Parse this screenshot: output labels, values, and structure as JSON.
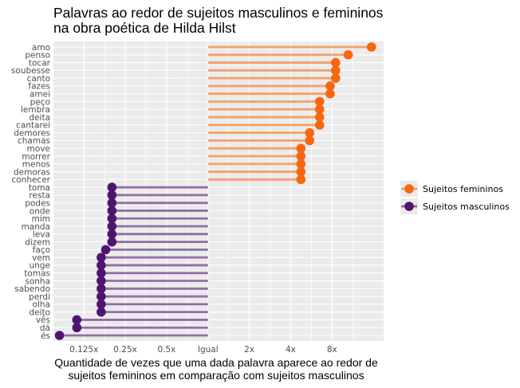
{
  "chart_data": {
    "type": "lollipop",
    "title": [
      "Palavras ao redor de sujeitos masculinos e femininos",
      "na obra poética de Hilda Hilst"
    ],
    "xlabel": [
      "Quantidade de vezes que uma dada palavra aparece ao redor de",
      "sujeitos femininos em comparação com sujeitos masculinos"
    ],
    "ylabel": "",
    "x_scale": "log2",
    "x_baseline": 1,
    "xlim": [
      0.075,
      19
    ],
    "x_ticks": [
      {
        "value": 0.125,
        "label": "0.125x"
      },
      {
        "value": 0.25,
        "label": "0.25x"
      },
      {
        "value": 0.5,
        "label": "0.5x"
      },
      {
        "value": 1,
        "label": "Igual"
      },
      {
        "value": 2,
        "label": "2x"
      },
      {
        "value": 4,
        "label": "4x"
      },
      {
        "value": 8,
        "label": "8x"
      }
    ],
    "grid": true,
    "legend_position": "right",
    "colors": {
      "Sujeitos femininos": "#f8660d",
      "Sujeitos masculinos": "#4f1470",
      "panel": "#ebebeb",
      "grid": "#ffffff"
    },
    "series": [
      {
        "name": "Sujeitos femininos",
        "points": [
          {
            "word": "amo",
            "value": 15.5
          },
          {
            "word": "penso",
            "value": 10.5
          },
          {
            "word": "tocar",
            "value": 8.5
          },
          {
            "word": "soubesse",
            "value": 8.5
          },
          {
            "word": "canto",
            "value": 8.5
          },
          {
            "word": "fazes",
            "value": 7.75
          },
          {
            "word": "amei",
            "value": 7.75
          },
          {
            "word": "peço",
            "value": 6.5
          },
          {
            "word": "lembra",
            "value": 6.5
          },
          {
            "word": "deita",
            "value": 6.5
          },
          {
            "word": "cantarei",
            "value": 6.5
          },
          {
            "word": "demores",
            "value": 5.5
          },
          {
            "word": "chamas",
            "value": 5.5
          },
          {
            "word": "move",
            "value": 4.75
          },
          {
            "word": "morrer",
            "value": 4.75
          },
          {
            "word": "menos",
            "value": 4.75
          },
          {
            "word": "demoras",
            "value": 4.75
          },
          {
            "word": "conhecer",
            "value": 4.75
          }
        ]
      },
      {
        "name": "Sujeitos masculinos",
        "points": [
          {
            "word": "toma",
            "value": 0.2
          },
          {
            "word": "resta",
            "value": 0.2
          },
          {
            "word": "podes",
            "value": 0.2
          },
          {
            "word": "onde",
            "value": 0.2
          },
          {
            "word": "mim",
            "value": 0.2
          },
          {
            "word": "manda",
            "value": 0.2
          },
          {
            "word": "leva",
            "value": 0.2
          },
          {
            "word": "dizem",
            "value": 0.2
          },
          {
            "word": "faço",
            "value": 0.18
          },
          {
            "word": "vem",
            "value": 0.167
          },
          {
            "word": "unge",
            "value": 0.167
          },
          {
            "word": "tomas",
            "value": 0.167
          },
          {
            "word": "sonha",
            "value": 0.167
          },
          {
            "word": "sabendo",
            "value": 0.167
          },
          {
            "word": "perdi",
            "value": 0.167
          },
          {
            "word": "olha",
            "value": 0.167
          },
          {
            "word": "deito",
            "value": 0.167
          },
          {
            "word": "vês",
            "value": 0.111
          },
          {
            "word": "dá",
            "value": 0.111
          },
          {
            "word": "és",
            "value": 0.083
          }
        ]
      }
    ]
  }
}
